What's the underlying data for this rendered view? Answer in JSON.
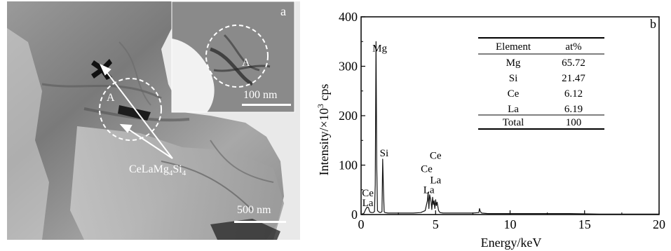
{
  "panel_a": {
    "label": "a",
    "phase_label": "CeLaMg",
    "phase_sub1": "4",
    "phase_si": "Si",
    "phase_sub2": "4",
    "region_label": "A",
    "scale_bar_main": "500 nm",
    "inset_region_label": "A",
    "inset_scale_bar": "100 nm"
  },
  "panel_b": {
    "label": "b",
    "table": {
      "headers": [
        "Element",
        "at%"
      ],
      "rows": [
        {
          "element": "Mg",
          "value": "65.72"
        },
        {
          "element": "Si",
          "value": "21.47"
        },
        {
          "element": "Ce",
          "value": "6.12"
        },
        {
          "element": "La",
          "value": "6.19"
        }
      ],
      "total": {
        "element": "Total",
        "value": "100"
      }
    }
  },
  "chart_data": {
    "type": "line",
    "xlabel": "Energy/keV",
    "ylabel": "Intensity/×10³ cps",
    "ylabel_parts": {
      "pre": "Intensity/",
      "times": "×",
      "base": "10",
      "exp": "3",
      "post": " cps"
    },
    "xlim": [
      0,
      20
    ],
    "ylim": [
      0,
      400
    ],
    "xticks": [
      0,
      5,
      10,
      15,
      20
    ],
    "yticks": [
      0,
      100,
      200,
      300,
      400
    ],
    "series": [
      {
        "x": [
          0.0,
          0.2,
          0.3,
          0.4,
          0.5,
          0.55,
          0.6,
          0.7,
          0.8,
          0.9,
          0.95,
          1.0,
          1.05,
          1.1,
          1.2,
          1.3,
          1.4,
          1.45,
          1.5,
          1.55,
          1.6,
          1.8,
          2.0,
          2.5,
          3.0,
          3.5,
          4.0,
          4.3,
          4.45,
          4.5,
          4.55,
          4.6,
          4.7,
          4.75,
          4.8,
          4.85,
          4.9,
          4.95,
          5.0,
          5.05,
          5.1,
          5.2,
          5.3,
          5.5,
          6.0,
          6.5,
          7.0,
          7.5,
          7.9,
          7.95,
          8.0,
          8.1,
          8.5,
          9.0,
          10.0,
          12.0,
          14.0,
          16.0,
          18.0,
          20.0
        ],
        "y": [
          0,
          3,
          10,
          15,
          14,
          8,
          5,
          4,
          4,
          6,
          60,
          350,
          100,
          8,
          5,
          4,
          6,
          112,
          50,
          6,
          4,
          3,
          3,
          3,
          3,
          3,
          4,
          8,
          28,
          45,
          12,
          40,
          25,
          10,
          35,
          20,
          28,
          12,
          30,
          18,
          25,
          8,
          4,
          3,
          3,
          3,
          3,
          3,
          4,
          12,
          6,
          3,
          2,
          2,
          2,
          2,
          2,
          1,
          1,
          1
        ]
      }
    ],
    "peak_labels": [
      {
        "text": "Mg",
        "x": 1.25,
        "y": 330
      },
      {
        "text": "Si",
        "x": 1.55,
        "y": 118
      },
      {
        "text": "Ce",
        "x": 5.0,
        "y": 113
      },
      {
        "text": "Ce",
        "x": 4.4,
        "y": 86
      },
      {
        "text": "La",
        "x": 5.0,
        "y": 63
      },
      {
        "text": "La",
        "x": 4.55,
        "y": 43
      },
      {
        "text": "Ce",
        "x": 0.45,
        "y": 37
      },
      {
        "text": "La",
        "x": 0.45,
        "y": 17
      }
    ]
  }
}
